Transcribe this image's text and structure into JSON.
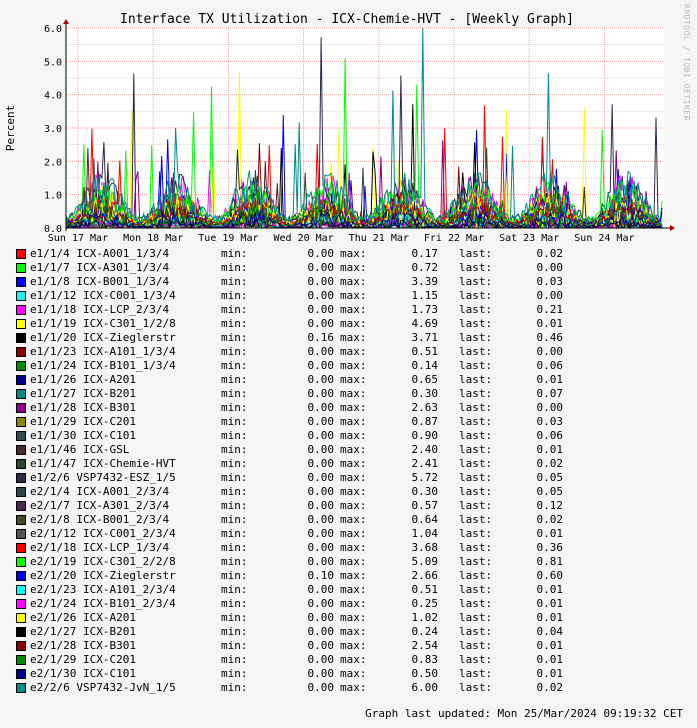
{
  "title": "Interface TX Utilization - ICX-Chemie-HVT - [Weekly Graph]",
  "watermark": "RRDTOOL / TOBI OETIKER",
  "footer": "Graph last updated: Mon 25/Mar/2024 09:19:32 CET",
  "legend_labels": {
    "min": "min:",
    "max": "max:",
    "last": "last:"
  },
  "chart_data": {
    "type": "line",
    "ylabel": "Percent",
    "ylim": [
      0,
      6
    ],
    "yticks": [
      "0.0",
      "1.0",
      "2.0",
      "3.0",
      "4.0",
      "5.0",
      "6.0"
    ],
    "xticks": [
      "Sun 17 Mar",
      "Mon 18 Mar",
      "Tue 19 Mar",
      "Wed 20 Mar",
      "Thu 21 Mar",
      "Fri 22 Mar",
      "Sat 23 Mar",
      "Sun 24 Mar"
    ],
    "grid": true,
    "series": [
      {
        "name": "e1/1/4 ICX-A001_1/3/4",
        "color": "#ff0000",
        "min": "0.00",
        "max": "0.17",
        "last": "0.02"
      },
      {
        "name": "e1/1/7 ICX-A301_1/3/4",
        "color": "#00ff00",
        "min": "0.00",
        "max": "0.72",
        "last": "0.00"
      },
      {
        "name": "e1/1/8 ICX-B001_1/3/4",
        "color": "#0000ff",
        "min": "0.00",
        "max": "3.39",
        "last": "0.03"
      },
      {
        "name": "e1/1/12 ICX-C001_1/3/4",
        "color": "#00ffff",
        "min": "0.00",
        "max": "1.15",
        "last": "0.00"
      },
      {
        "name": "e1/1/18 ICX-LCP_2/3/4",
        "color": "#ff00ff",
        "min": "0.00",
        "max": "1.73",
        "last": "0.21"
      },
      {
        "name": "e1/1/19 ICX-C301_1/2/8",
        "color": "#ffff00",
        "min": "0.00",
        "max": "4.69",
        "last": "0.01"
      },
      {
        "name": "e1/1/20 ICX-Zieglerstr",
        "color": "#000000",
        "min": "0.16",
        "max": "3.71",
        "last": "0.46"
      },
      {
        "name": "e1/1/23 ICX-A101_1/3/4",
        "color": "#8b0000",
        "min": "0.00",
        "max": "0.51",
        "last": "0.00"
      },
      {
        "name": "e1/1/24 ICX-B101_1/3/4",
        "color": "#008b00",
        "min": "0.00",
        "max": "0.14",
        "last": "0.06"
      },
      {
        "name": "e1/1/26 ICX-A201",
        "color": "#00008b",
        "min": "0.00",
        "max": "0.65",
        "last": "0.01"
      },
      {
        "name": "e1/1/27 ICX-B201",
        "color": "#008b8b",
        "min": "0.00",
        "max": "0.30",
        "last": "0.07"
      },
      {
        "name": "e1/1/28 ICX-B301",
        "color": "#8b008b",
        "min": "0.00",
        "max": "2.63",
        "last": "0.00"
      },
      {
        "name": "e1/1/29 ICX-C201",
        "color": "#8b8b00",
        "min": "0.00",
        "max": "0.87",
        "last": "0.03"
      },
      {
        "name": "e1/1/30 ICX-C101",
        "color": "#2f4f4f",
        "min": "0.00",
        "max": "0.90",
        "last": "0.06"
      },
      {
        "name": "e1/1/46 ICX-GSL",
        "color": "#4a2a2a",
        "min": "0.00",
        "max": "2.40",
        "last": "0.01"
      },
      {
        "name": "e1/1/47 ICX-Chemie-HVT",
        "color": "#2a4a2a",
        "min": "0.00",
        "max": "2.41",
        "last": "0.02"
      },
      {
        "name": "e1/2/6 VSP7432-ESZ_1/5",
        "color": "#2a2a4a",
        "min": "0.00",
        "max": "5.72",
        "last": "0.05"
      },
      {
        "name": "e2/1/4 ICX-A001_2/3/4",
        "color": "#2a4a4a",
        "min": "0.00",
        "max": "0.30",
        "last": "0.05"
      },
      {
        "name": "e2/1/7 ICX-A301_2/3/4",
        "color": "#4a2a4a",
        "min": "0.00",
        "max": "0.57",
        "last": "0.12"
      },
      {
        "name": "e2/1/8 ICX-B001_2/3/4",
        "color": "#4a4a2a",
        "min": "0.00",
        "max": "0.64",
        "last": "0.02"
      },
      {
        "name": "e2/1/12 ICX-C001_2/3/4",
        "color": "#555555",
        "min": "0.00",
        "max": "1.04",
        "last": "0.01"
      },
      {
        "name": "e2/1/18 ICX-LCP_1/3/4",
        "color": "#ff0000",
        "min": "0.00",
        "max": "3.68",
        "last": "0.36"
      },
      {
        "name": "e2/1/19 ICX-C301_2/2/8",
        "color": "#00ff00",
        "min": "0.00",
        "max": "5.09",
        "last": "0.81"
      },
      {
        "name": "e2/1/20 ICX-Zieglerstr",
        "color": "#0000ff",
        "min": "0.10",
        "max": "2.66",
        "last": "0.60"
      },
      {
        "name": "e2/1/23 ICX-A101_2/3/4",
        "color": "#00ffff",
        "min": "0.00",
        "max": "0.51",
        "last": "0.01"
      },
      {
        "name": "e2/1/24 ICX-B101_2/3/4",
        "color": "#ff00ff",
        "min": "0.00",
        "max": "0.25",
        "last": "0.01"
      },
      {
        "name": "e2/1/26 ICX-A201",
        "color": "#ffff00",
        "min": "0.00",
        "max": "1.02",
        "last": "0.01"
      },
      {
        "name": "e2/1/27 ICX-B201",
        "color": "#000000",
        "min": "0.00",
        "max": "0.24",
        "last": "0.04"
      },
      {
        "name": "e2/1/28 ICX-B301",
        "color": "#8b0000",
        "min": "0.00",
        "max": "2.54",
        "last": "0.01"
      },
      {
        "name": "e2/1/29 ICX-C201",
        "color": "#008b00",
        "min": "0.00",
        "max": "0.83",
        "last": "0.01"
      },
      {
        "name": "e2/1/30 ICX-C101",
        "color": "#00008b",
        "min": "0.00",
        "max": "0.50",
        "last": "0.01"
      },
      {
        "name": "e2/2/6 VSP7432-JvN_1/5",
        "color": "#008b8b",
        "min": "0.00",
        "max": "6.00",
        "last": "0.02"
      }
    ]
  }
}
